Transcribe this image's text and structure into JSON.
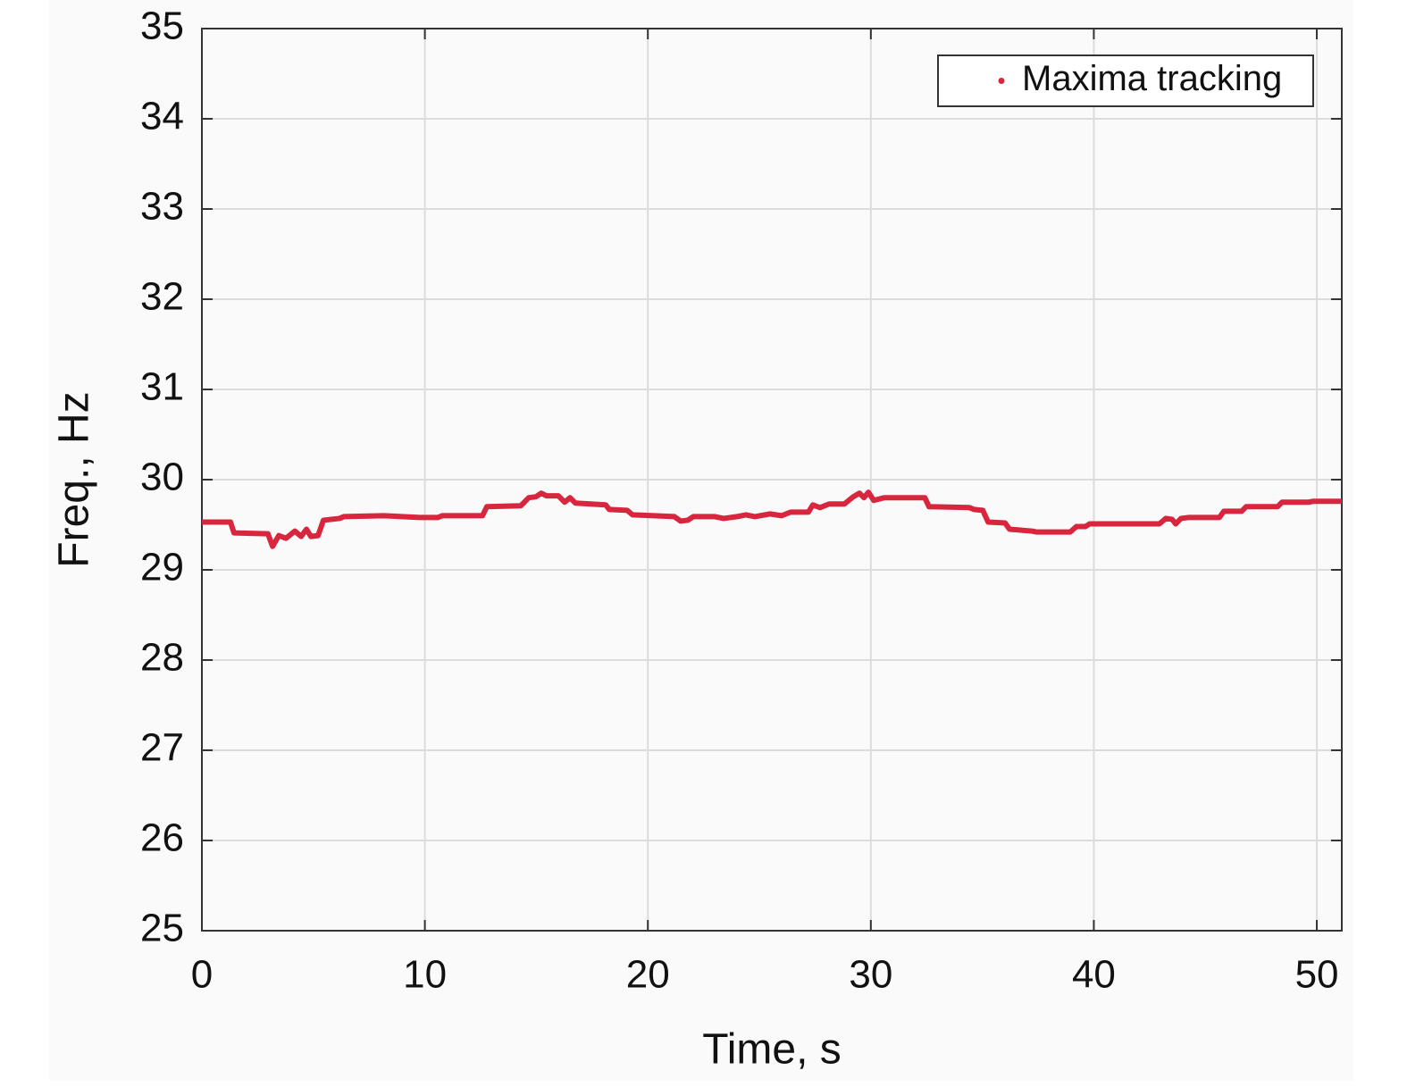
{
  "chart_data": {
    "type": "line",
    "xlabel": "Time, s",
    "ylabel": "Freq., Hz",
    "x": [
      0,
      1.28,
      1.44,
      2.96,
      3.17,
      3.45,
      3.77,
      4.17,
      4.45,
      4.69,
      4.89,
      5.21,
      5.45,
      6.17,
      6.37,
      8.17,
      9.78,
      10.58,
      10.78,
      12.58,
      12.78,
      14.3,
      14.66,
      14.98,
      15.22,
      15.46,
      15.99,
      16.27,
      16.51,
      16.75,
      18.11,
      18.27,
      19.07,
      19.31,
      21.19,
      21.47,
      21.79,
      22.04,
      23.0,
      23.4,
      24.0,
      24.4,
      24.8,
      25.48,
      26.0,
      26.4,
      27.2,
      27.4,
      27.72,
      28.13,
      28.81,
      29.21,
      29.49,
      29.69,
      29.89,
      30.13,
      30.61,
      32.42,
      32.61,
      34.42,
      34.62,
      35.02,
      35.26,
      36.02,
      36.22,
      37.22,
      37.42,
      38.94,
      39.22,
      39.62,
      39.82,
      40.62,
      42.94,
      43.23,
      43.51,
      43.67,
      43.91,
      44.23,
      45.63,
      45.83,
      46.63,
      46.83,
      48.24,
      48.44,
      49.64,
      49.84,
      51.12
    ],
    "series": [
      {
        "name": "Maxima tracking",
        "color": "#d7263d",
        "values": [
          29.53,
          29.53,
          29.41,
          29.4,
          29.26,
          29.38,
          29.35,
          29.43,
          29.37,
          29.45,
          29.37,
          29.38,
          29.55,
          29.57,
          29.59,
          29.6,
          29.58,
          29.58,
          29.6,
          29.6,
          29.7,
          29.71,
          29.8,
          29.81,
          29.85,
          29.82,
          29.82,
          29.75,
          29.8,
          29.74,
          29.72,
          29.67,
          29.66,
          29.61,
          29.59,
          29.54,
          29.55,
          29.59,
          29.59,
          29.57,
          29.59,
          29.61,
          29.59,
          29.62,
          29.6,
          29.64,
          29.64,
          29.72,
          29.69,
          29.73,
          29.73,
          29.81,
          29.85,
          29.8,
          29.86,
          29.77,
          29.8,
          29.8,
          29.7,
          29.69,
          29.67,
          29.66,
          29.53,
          29.52,
          29.45,
          29.43,
          29.42,
          29.42,
          29.48,
          29.48,
          29.51,
          29.51,
          29.51,
          29.57,
          29.56,
          29.51,
          29.57,
          29.58,
          29.58,
          29.65,
          29.65,
          29.7,
          29.7,
          29.75,
          29.75,
          29.76,
          29.76
        ]
      }
    ],
    "xlim": [
      0,
      51.12
    ],
    "xticks": [
      0,
      10,
      20,
      30,
      40,
      50
    ],
    "ylim": [
      25,
      35
    ],
    "yticks": [
      25,
      26,
      27,
      28,
      29,
      30,
      31,
      32,
      33,
      34,
      35
    ],
    "grid": true,
    "legend": "upper right"
  }
}
